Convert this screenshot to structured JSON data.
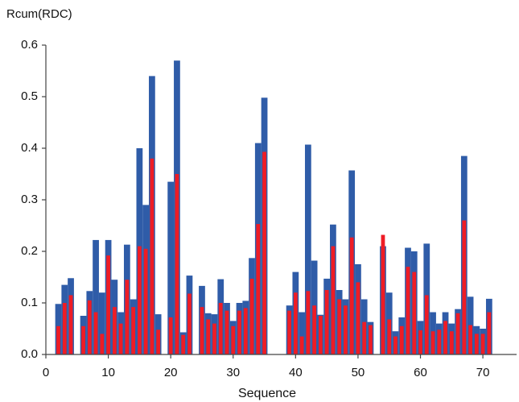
{
  "chart_data": {
    "type": "bar",
    "ylabel": "Rcum(RDC)",
    "xlabel": "Sequence",
    "x": [
      2,
      3,
      4,
      6,
      7,
      8,
      9,
      10,
      11,
      12,
      13,
      14,
      15,
      16,
      17,
      18,
      20,
      21,
      22,
      23,
      25,
      26,
      27,
      28,
      29,
      30,
      31,
      32,
      33,
      34,
      35,
      39,
      40,
      41,
      42,
      43,
      44,
      45,
      46,
      47,
      48,
      49,
      50,
      51,
      52,
      54,
      55,
      56,
      57,
      58,
      59,
      60,
      61,
      62,
      63,
      64,
      65,
      66,
      67,
      68,
      69,
      70,
      71
    ],
    "series": [
      {
        "color": "#2f5ca8",
        "values": [
          0.098,
          0.135,
          0.148,
          0.075,
          0.123,
          0.222,
          0.12,
          0.222,
          0.145,
          0.082,
          0.213,
          0.107,
          0.4,
          0.29,
          0.54,
          0.078,
          0.335,
          0.57,
          0.043,
          0.153,
          0.133,
          0.08,
          0.078,
          0.146,
          0.1,
          0.065,
          0.1,
          0.104,
          0.187,
          0.41,
          0.498,
          0.095,
          0.16,
          0.082,
          0.407,
          0.182,
          0.077,
          0.147,
          0.252,
          0.125,
          0.107,
          0.357,
          0.175,
          0.107,
          0.063,
          0.21,
          0.12,
          0.045,
          0.072,
          0.207,
          0.2,
          0.065,
          0.215,
          0.082,
          0.06,
          0.082,
          0.06,
          0.088,
          0.385,
          0.112,
          0.055,
          0.05,
          0.108
        ]
      },
      {
        "color": "#ee1c25",
        "values": [
          0.055,
          0.1,
          0.115,
          0.055,
          0.105,
          0.082,
          0.04,
          0.192,
          0.092,
          0.06,
          0.145,
          0.092,
          0.21,
          0.205,
          0.38,
          0.048,
          0.072,
          0.35,
          0.038,
          0.118,
          0.092,
          0.068,
          0.06,
          0.1,
          0.085,
          0.055,
          0.085,
          0.09,
          0.147,
          0.253,
          0.393,
          0.085,
          0.12,
          0.035,
          0.123,
          0.095,
          0.075,
          0.125,
          0.21,
          0.107,
          0.095,
          0.227,
          0.14,
          0.063,
          0.057,
          0.232,
          0.068,
          0.035,
          0.055,
          0.17,
          0.16,
          0.047,
          0.115,
          0.045,
          0.048,
          0.065,
          0.045,
          0.08,
          0.26,
          0.057,
          0.04,
          0.04,
          0.082
        ]
      }
    ],
    "xlim": [
      0,
      75.4
    ],
    "xticks": [
      0,
      10,
      20,
      30,
      40,
      50,
      60,
      70
    ],
    "ylim": [
      0,
      0.6
    ],
    "yticks": [
      {
        "value": 0,
        "label": "0.0"
      },
      0.1,
      0.2,
      0.3,
      0.4,
      0.5,
      0.6
    ]
  }
}
